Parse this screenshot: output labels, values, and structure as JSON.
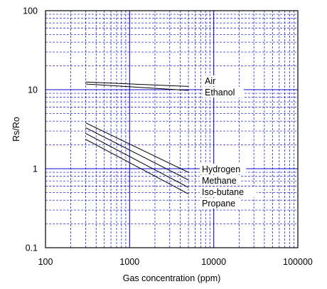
{
  "chart_data": {
    "type": "line",
    "title": "",
    "xlabel": "Gas concentration (ppm)",
    "ylabel_main": "Rs",
    "ylabel_sep": "/",
    "ylabel_sub": "Ro",
    "x_scale": "log",
    "y_scale": "log",
    "xlim": [
      100,
      100000
    ],
    "ylim": [
      0.1,
      100
    ],
    "x_ticks": [
      "100",
      "1000",
      "10000",
      "100000"
    ],
    "y_ticks": [
      "0.1",
      "1",
      "10",
      "100"
    ],
    "grid": true,
    "grid_color": "#0a0ad2",
    "series": [
      {
        "name": "Air",
        "x": [
          300,
          5000
        ],
        "y": [
          12.5,
          11.0
        ]
      },
      {
        "name": "Ethanol",
        "x": [
          300,
          5000
        ],
        "y": [
          11.8,
          9.8
        ]
      },
      {
        "name": "Hydrogen",
        "x": [
          300,
          5000
        ],
        "y": [
          3.8,
          0.9
        ]
      },
      {
        "name": "Methane",
        "x": [
          300,
          5000
        ],
        "y": [
          3.3,
          0.72
        ]
      },
      {
        "name": "Iso-butane",
        "x": [
          300,
          5000
        ],
        "y": [
          2.8,
          0.58
        ]
      },
      {
        "name": "Propane",
        "x": [
          300,
          5000
        ],
        "y": [
          2.35,
          0.48
        ]
      }
    ]
  }
}
